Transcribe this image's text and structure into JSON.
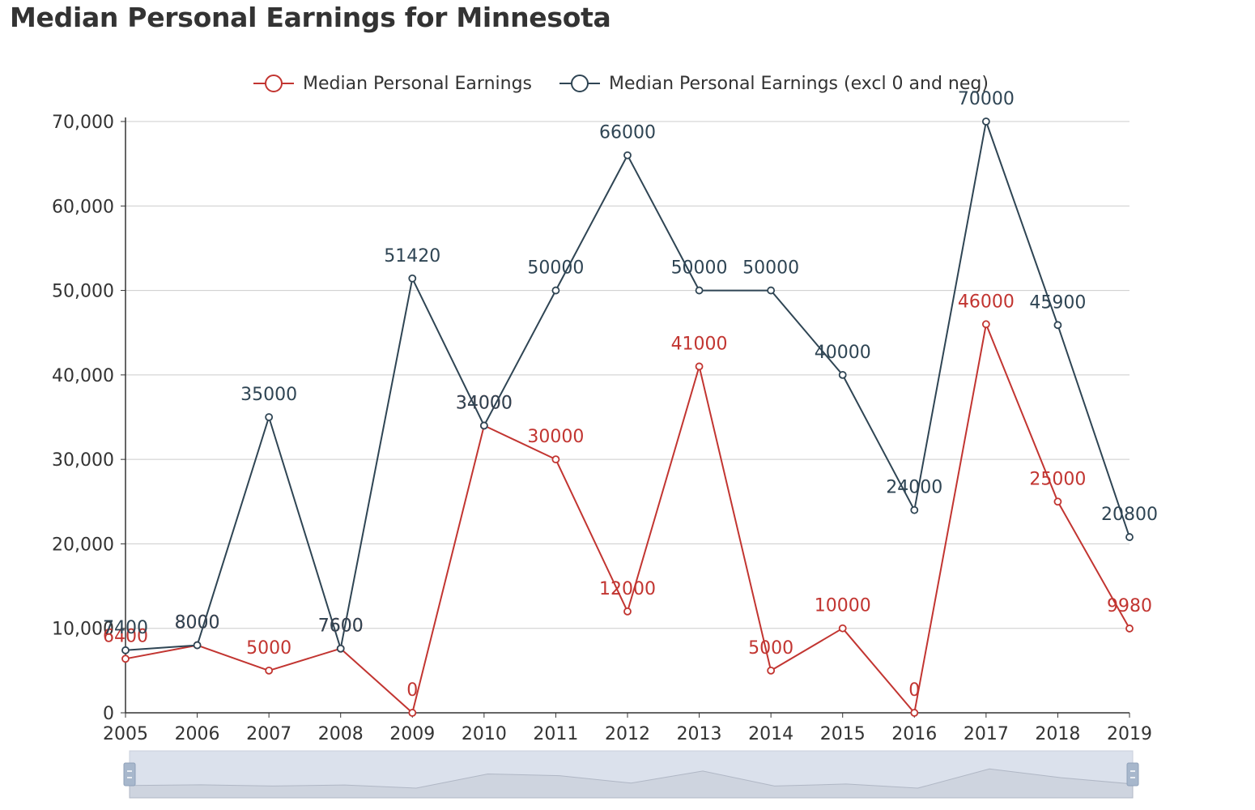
{
  "colors": {
    "series_red": "#c23531",
    "series_dark": "#2f4554",
    "grid": "#cccccc",
    "axis": "#333333",
    "zoom_fill": "#dbe1ec"
  },
  "chart_data": {
    "type": "line",
    "title": "Median Personal Earnings for Minnesota",
    "x": [
      "2005",
      "2006",
      "2007",
      "2008",
      "2009",
      "2010",
      "2011",
      "2012",
      "2013",
      "2014",
      "2015",
      "2016",
      "2017",
      "2018",
      "2019"
    ],
    "ylim": [
      0,
      70000
    ],
    "yticks": [
      0,
      10000,
      20000,
      30000,
      40000,
      50000,
      60000,
      70000
    ],
    "ytick_labels": [
      "0",
      "10,000",
      "20,000",
      "30,000",
      "40,000",
      "50,000",
      "60,000",
      "70,000"
    ],
    "grid": true,
    "legend_placement": "top-center",
    "series": [
      {
        "name": "Median Personal Earnings",
        "color": "#c23531",
        "values": [
          6400,
          8000,
          5000,
          7600,
          0,
          34000,
          30000,
          12000,
          41000,
          5000,
          10000,
          0,
          46000,
          25000,
          9980
        ]
      },
      {
        "name": "Median Personal Earnings (excl 0 and neg)",
        "color": "#2f4554",
        "values": [
          7400,
          8000,
          35000,
          7600,
          51420,
          34000,
          50000,
          66000,
          50000,
          50000,
          40000,
          24000,
          70000,
          45900,
          20800
        ]
      }
    ],
    "data_zoom": {
      "start": 0,
      "end": 1,
      "preview_series": 0
    }
  }
}
